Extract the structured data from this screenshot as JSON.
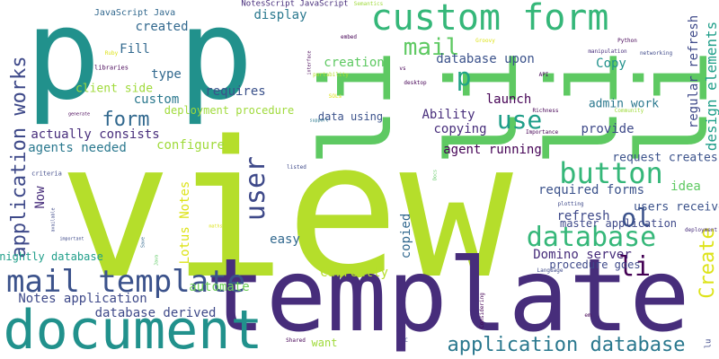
{
  "words": [
    {
      "text": "view",
      "color": "#b5de2b",
      "rotated": false
    },
    {
      "text": "template",
      "color": "#472d7b",
      "rotated": false
    },
    {
      "text": "p",
      "color": "#21918c",
      "rotated": false
    },
    {
      "text": "p",
      "color": "#21918c",
      "rotated": false
    },
    {
      "text": "li",
      "color": "#5ec962",
      "rotated": true
    },
    {
      "text": "li",
      "color": "#5ec962",
      "rotated": true
    },
    {
      "text": "li",
      "color": "#5ec962",
      "rotated": true
    },
    {
      "text": "li",
      "color": "#5ec962",
      "rotated": true
    },
    {
      "text": "document",
      "color": "#21918c",
      "rotated": false
    },
    {
      "text": "custom form",
      "color": "#35b779",
      "rotated": false
    },
    {
      "text": "mail template",
      "color": "#3b528b",
      "rotated": false
    },
    {
      "text": "application works",
      "color": "#3e4989",
      "rotated": true
    },
    {
      "text": "button",
      "color": "#35b779",
      "rotated": false
    },
    {
      "text": "user",
      "color": "#3e4989",
      "rotated": true
    },
    {
      "text": "database",
      "color": "#35b779",
      "rotated": false
    },
    {
      "text": "application database",
      "color": "#2a788e",
      "rotated": false
    },
    {
      "text": "Create",
      "color": "#dde318",
      "rotated": true
    },
    {
      "text": "ol",
      "color": "#3b528b",
      "rotated": false
    },
    {
      "text": "li",
      "color": "#440154",
      "rotated": false
    },
    {
      "text": "use",
      "color": "#1f9e89",
      "rotated": false
    },
    {
      "text": "form",
      "color": "#31688e",
      "rotated": false
    },
    {
      "text": "mail",
      "color": "#5ec962",
      "rotated": false
    },
    {
      "text": "p",
      "color": "#20a386",
      "rotated": false
    },
    {
      "text": "design elements",
      "color": "#1f9e89",
      "rotated": true
    },
    {
      "text": "regular refresh",
      "color": "#3e4989",
      "rotated": true
    },
    {
      "text": "display",
      "color": "#2a788e",
      "rotated": false
    },
    {
      "text": "JavaScript Java",
      "color": "#31688e",
      "rotated": false
    },
    {
      "text": "NotesScript JavaScript",
      "color": "#472d7b",
      "rotated": false
    },
    {
      "text": "created",
      "color": "#31688e",
      "rotated": false
    },
    {
      "text": "Fill",
      "color": "#31688e",
      "rotated": false
    },
    {
      "text": "libraries",
      "color": "#440154",
      "rotated": false
    },
    {
      "text": "type",
      "color": "#31688e",
      "rotated": false
    },
    {
      "text": "client side",
      "color": "#9fda3a",
      "rotated": false
    },
    {
      "text": "custom",
      "color": "#2a788e",
      "rotated": false
    },
    {
      "text": "requires",
      "color": "#3b528b",
      "rotated": false
    },
    {
      "text": "creation",
      "color": "#5ec962",
      "rotated": false
    },
    {
      "text": "database upon",
      "color": "#3b528b",
      "rotated": false
    },
    {
      "text": "Copy",
      "color": "#21918c",
      "rotated": false
    },
    {
      "text": "launch",
      "color": "#440154",
      "rotated": false
    },
    {
      "text": "admin work",
      "color": "#2a788e",
      "rotated": false
    },
    {
      "text": "deployment procedure",
      "color": "#9fda3a",
      "rotated": false
    },
    {
      "text": "Ability",
      "color": "#472d7b",
      "rotated": false
    },
    {
      "text": "data using",
      "color": "#3b528b",
      "rotated": false
    },
    {
      "text": "copying",
      "color": "#472d7b",
      "rotated": false
    },
    {
      "text": "provide",
      "color": "#3e4989",
      "rotated": false
    },
    {
      "text": "actually consists",
      "color": "#472d7b",
      "rotated": false
    },
    {
      "text": "agents needed",
      "color": "#2a788e",
      "rotated": false
    },
    {
      "text": "configure",
      "color": "#9fda3a",
      "rotated": false
    },
    {
      "text": "agent running",
      "color": "#440154",
      "rotated": false
    },
    {
      "text": "request creates",
      "color": "#3b528b",
      "rotated": false
    },
    {
      "text": "idea",
      "color": "#5ec962",
      "rotated": false
    },
    {
      "text": "required forms",
      "color": "#3b528b",
      "rotated": false
    },
    {
      "text": "users receive",
      "color": "#3b528b",
      "rotated": false
    },
    {
      "text": "master application",
      "color": "#3e4989",
      "rotated": false
    },
    {
      "text": "refresh",
      "color": "#3e4989",
      "rotated": false
    },
    {
      "text": "Now",
      "color": "#472d7b",
      "rotated": true
    },
    {
      "text": "Lotus Notes",
      "color": "#dde318",
      "rotated": true
    },
    {
      "text": "copied",
      "color": "#31688e",
      "rotated": true
    },
    {
      "text": "easy",
      "color": "#31688e",
      "rotated": false
    },
    {
      "text": "Domino server",
      "color": "#472d7b",
      "rotated": false
    },
    {
      "text": "nightly database",
      "color": "#1f9e89",
      "rotated": false
    },
    {
      "text": "Currently",
      "color": "#b5de2b",
      "rotated": false
    },
    {
      "text": "procedure goes",
      "color": "#3e4989",
      "rotated": false
    },
    {
      "text": "automate",
      "color": "#6ece58",
      "rotated": false
    },
    {
      "text": "Notes application",
      "color": "#3e4989",
      "rotated": false
    },
    {
      "text": "database derived",
      "color": "#3e4989",
      "rotated": false
    },
    {
      "text": "want",
      "color": "#9fda3a",
      "rotated": false
    },
    {
      "text": "Semantics",
      "color": "#9fda3a",
      "rotated": false
    },
    {
      "text": "embed",
      "color": "#440154",
      "rotated": false
    },
    {
      "text": "Groovy",
      "color": "#dde318",
      "rotated": false
    },
    {
      "text": "Python",
      "color": "#440154",
      "rotated": false
    },
    {
      "text": "manipulation",
      "color": "#472d7b",
      "rotated": false
    },
    {
      "text": "networking",
      "color": "#3e4989",
      "rotated": false
    },
    {
      "text": "API",
      "color": "#440154",
      "rotated": false
    },
    {
      "text": "interface",
      "color": "#440154",
      "rotated": true
    },
    {
      "text": "portability",
      "color": "#b5de2b",
      "rotated": false
    },
    {
      "text": "vs",
      "color": "#440154",
      "rotated": false
    },
    {
      "text": "desktop",
      "color": "#440154",
      "rotated": false
    },
    {
      "text": "Richness",
      "color": "#440154",
      "rotated": false
    },
    {
      "text": "Community",
      "color": "#9fda3a",
      "rotated": false
    },
    {
      "text": "Ruby",
      "color": "#dde318",
      "rotated": false
    },
    {
      "text": "generate",
      "color": "#440154",
      "rotated": false
    },
    {
      "text": "support",
      "color": "#2a788e",
      "rotated": false
    },
    {
      "text": "SOLs",
      "color": "#dde318",
      "rotated": false
    },
    {
      "text": "Importance",
      "color": "#440154",
      "rotated": false
    },
    {
      "text": "criteria",
      "color": "#3e4989",
      "rotated": false
    },
    {
      "text": "listed",
      "color": "#3e4989",
      "rotated": false
    },
    {
      "text": "Docs",
      "color": "#5ec962",
      "rotated": true
    },
    {
      "text": "available",
      "color": "#3e4989",
      "rotated": true
    },
    {
      "text": "plotting",
      "color": "#3e4989",
      "rotated": false
    },
    {
      "text": "maths",
      "color": "#dde318",
      "rotated": false
    },
    {
      "text": "deployment",
      "color": "#472d7b",
      "rotated": false
    },
    {
      "text": "important",
      "color": "#3e4989",
      "rotated": false
    },
    {
      "text": "Save",
      "color": "#31688e",
      "rotated": true
    },
    {
      "text": "Language",
      "color": "#3e4989",
      "rotated": false
    },
    {
      "text": "Considering",
      "color": "#440154",
      "rotated": true
    },
    {
      "text": "Shared",
      "color": "#440154",
      "rotated": false
    },
    {
      "text": "Java",
      "color": "#5ec962",
      "rotated": true
    },
    {
      "text": "lu",
      "color": "#3e4989",
      "rotated": true
    },
    {
      "text": "C",
      "color": "#3e4989",
      "rotated": false
    },
    {
      "text": "em",
      "color": "#440154",
      "rotated": false
    }
  ]
}
